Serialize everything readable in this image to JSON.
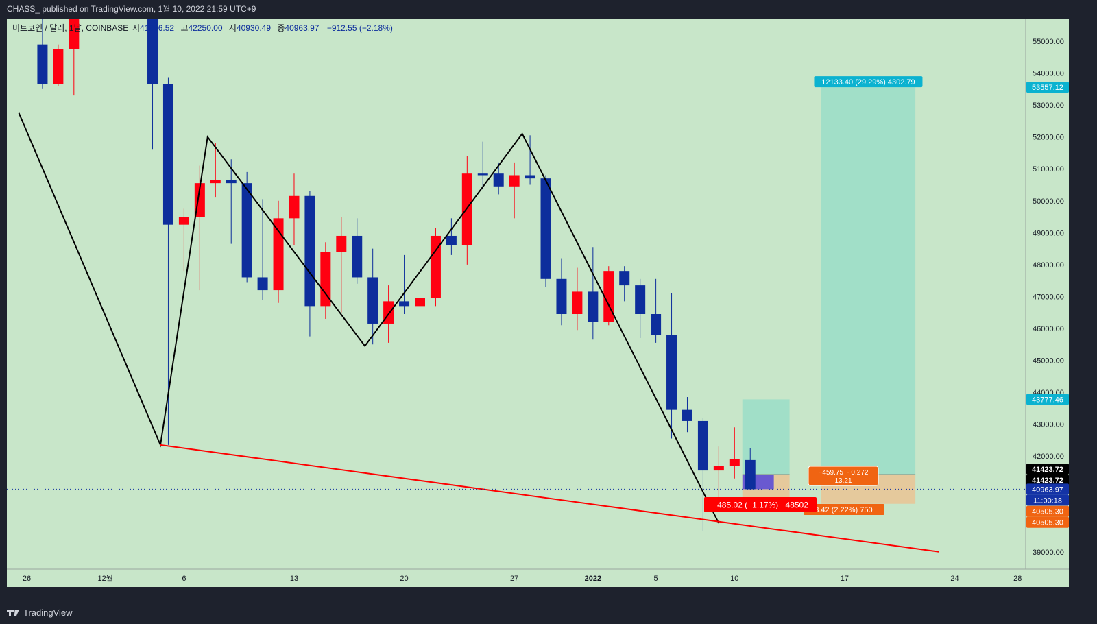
{
  "header": {
    "published": "CHASS_ published on TradingView.com, 1월 10, 2022 21:59 UTC+9"
  },
  "footer": {
    "brand": "TradingView",
    "logo_icon": "tradingview-logo-icon"
  },
  "colors": {
    "background": "#c8e6c9",
    "up_candle": "#ff0011",
    "down_candle": "#0d2e9c",
    "trendline": "#ff0000",
    "zigzag": "#000000",
    "target_zone": "#a1dfc8",
    "stop_zone": "#e5c99c",
    "entry_box": "#5b4dd6",
    "label_blue": "#0bb2d0",
    "label_orange": "#f06412",
    "label_red": "#ff0000",
    "label_navy": "#1433a6"
  },
  "legend": {
    "symbol": "비트코인 / 달러, 1날, COINBASE",
    "o_label": "시",
    "o_value": "41876.52",
    "h_label": "고",
    "h_value": "42250.00",
    "l_label": "저",
    "l_value": "40930.49",
    "c_label": "종",
    "c_value": "40963.97",
    "change": "−912.55 (−2.18%)"
  },
  "chart_data": {
    "type": "candlestick",
    "symbol": "비트코인 / 달러, 1날, COINBASE",
    "timeframe": "1날",
    "ylim": [
      38400,
      56200
    ],
    "y_ticks": [
      {
        "value": 55000,
        "label": "55000.00"
      },
      {
        "value": 54000,
        "label": "54000.00"
      },
      {
        "value": 53000,
        "label": "53000.00"
      },
      {
        "value": 52000,
        "label": "52000.00"
      },
      {
        "value": 51000,
        "label": "51000.00"
      },
      {
        "value": 50000,
        "label": "50000.00"
      },
      {
        "value": 49000,
        "label": "49000.00"
      },
      {
        "value": 48000,
        "label": "48000.00"
      },
      {
        "value": 47000,
        "label": "47000.00"
      },
      {
        "value": 46000,
        "label": "46000.00"
      },
      {
        "value": 45000,
        "label": "45000.00"
      },
      {
        "value": 44000,
        "label": "44000.00"
      },
      {
        "value": 43000,
        "label": "43000.00"
      },
      {
        "value": 42000,
        "label": "42000.00"
      },
      {
        "value": 39000,
        "label": "39000.00"
      }
    ],
    "x_ticks": [
      {
        "index": 0,
        "label": "26"
      },
      {
        "index": 5,
        "label": "12월"
      },
      {
        "index": 10,
        "label": "6"
      },
      {
        "index": 17,
        "label": "13"
      },
      {
        "index": 24,
        "label": "20"
      },
      {
        "index": 31,
        "label": "27"
      },
      {
        "index": 36,
        "label": "2022"
      },
      {
        "index": 40,
        "label": "5"
      },
      {
        "index": 45,
        "label": "10"
      },
      {
        "index": 52,
        "label": "17"
      },
      {
        "index": 59,
        "label": "24"
      },
      {
        "index": 63,
        "label": "28"
      }
    ],
    "candles": [
      {
        "i": 1,
        "o": 54900,
        "h": 55900,
        "l": 53500,
        "c": 53650
      },
      {
        "i": 2,
        "o": 53650,
        "h": 54900,
        "l": 53600,
        "c": 54750
      },
      {
        "i": 3,
        "o": 54750,
        "h": 56100,
        "l": 53300,
        "c": 56000
      },
      {
        "i": 8,
        "o": 56000,
        "h": 56000,
        "l": 51600,
        "c": 53650
      },
      {
        "i": 9,
        "o": 53650,
        "h": 53850,
        "l": 42350,
        "c": 49250
      },
      {
        "i": 10,
        "o": 49250,
        "h": 49750,
        "l": 47800,
        "c": 49500
      },
      {
        "i": 11,
        "o": 49500,
        "h": 51100,
        "l": 47200,
        "c": 50550
      },
      {
        "i": 12,
        "o": 50550,
        "h": 51800,
        "l": 50100,
        "c": 50650
      },
      {
        "i": 13,
        "o": 50650,
        "h": 51300,
        "l": 48650,
        "c": 50550
      },
      {
        "i": 14,
        "o": 50550,
        "h": 50900,
        "l": 47450,
        "c": 47600
      },
      {
        "i": 15,
        "o": 47600,
        "h": 50050,
        "l": 46900,
        "c": 47200
      },
      {
        "i": 16,
        "o": 47200,
        "h": 50000,
        "l": 46800,
        "c": 49450
      },
      {
        "i": 17,
        "o": 49450,
        "h": 50850,
        "l": 48600,
        "c": 50150
      },
      {
        "i": 18,
        "o": 50150,
        "h": 50300,
        "l": 45750,
        "c": 46700
      },
      {
        "i": 19,
        "o": 46700,
        "h": 48700,
        "l": 46300,
        "c": 48400
      },
      {
        "i": 20,
        "o": 48400,
        "h": 49500,
        "l": 46500,
        "c": 48900
      },
      {
        "i": 21,
        "o": 48900,
        "h": 49450,
        "l": 47400,
        "c": 47600
      },
      {
        "i": 22,
        "o": 47600,
        "h": 48500,
        "l": 45500,
        "c": 46150
      },
      {
        "i": 23,
        "o": 46150,
        "h": 47350,
        "l": 45550,
        "c": 46850
      },
      {
        "i": 24,
        "o": 46850,
        "h": 48300,
        "l": 46450,
        "c": 46700
      },
      {
        "i": 25,
        "o": 46700,
        "h": 47500,
        "l": 45600,
        "c": 46950
      },
      {
        "i": 26,
        "o": 46950,
        "h": 49150,
        "l": 46700,
        "c": 48900
      },
      {
        "i": 27,
        "o": 48900,
        "h": 49450,
        "l": 48300,
        "c": 48600
      },
      {
        "i": 28,
        "o": 48600,
        "h": 51400,
        "l": 48000,
        "c": 50850
      },
      {
        "i": 29,
        "o": 50850,
        "h": 51850,
        "l": 50350,
        "c": 50800
      },
      {
        "i": 30,
        "o": 50850,
        "h": 51200,
        "l": 50200,
        "c": 50450
      },
      {
        "i": 31,
        "o": 50450,
        "h": 51200,
        "l": 49450,
        "c": 50800
      },
      {
        "i": 32,
        "o": 50800,
        "h": 52050,
        "l": 50500,
        "c": 50700
      },
      {
        "i": 33,
        "o": 50700,
        "h": 50800,
        "l": 47300,
        "c": 47550
      },
      {
        "i": 34,
        "o": 47550,
        "h": 48200,
        "l": 46100,
        "c": 46450
      },
      {
        "i": 35,
        "o": 46450,
        "h": 47900,
        "l": 45950,
        "c": 47150
      },
      {
        "i": 36,
        "o": 47150,
        "h": 48550,
        "l": 45650,
        "c": 46200
      },
      {
        "i": 37,
        "o": 46200,
        "h": 47950,
        "l": 46100,
        "c": 47800
      },
      {
        "i": 38,
        "o": 47800,
        "h": 47950,
        "l": 46850,
        "c": 47350
      },
      {
        "i": 39,
        "o": 47350,
        "h": 47550,
        "l": 45700,
        "c": 46450
      },
      {
        "i": 40,
        "o": 46450,
        "h": 47550,
        "l": 45550,
        "c": 45800
      },
      {
        "i": 41,
        "o": 45800,
        "h": 47100,
        "l": 42550,
        "c": 43450
      },
      {
        "i": 42,
        "o": 43450,
        "h": 43850,
        "l": 42750,
        "c": 43100
      },
      {
        "i": 43,
        "o": 43100,
        "h": 43200,
        "l": 39650,
        "c": 41550
      },
      {
        "i": 44,
        "o": 41550,
        "h": 42300,
        "l": 40500,
        "c": 41700
      },
      {
        "i": 45,
        "o": 41700,
        "h": 42900,
        "l": 41300,
        "c": 41900
      },
      {
        "i": 46,
        "o": 41876.52,
        "h": 42250,
        "l": 40930.49,
        "c": 40963.97
      }
    ],
    "zigzag": [
      [
        -0.5,
        52750
      ],
      [
        8.5,
        42350
      ],
      [
        11.5,
        52000
      ],
      [
        21.5,
        45450
      ],
      [
        31.5,
        52100
      ],
      [
        44,
        39900
      ]
    ],
    "trendline": [
      [
        8.5,
        42350
      ],
      [
        58,
        39000
      ]
    ],
    "position_tool_left": {
      "x0": 45.5,
      "x1": 48.5,
      "target": 43777.46,
      "entry": 41423.72,
      "stop": 40505.3
    },
    "position_tool_right": {
      "x0": 50.5,
      "x1": 56.5,
      "target": 53557.12,
      "entry": 41423.72,
      "stop": 40505.3
    },
    "entry_box": {
      "x0": 45.5,
      "x1": 47.5,
      "top": 41423.72,
      "bottom": 40963.97
    },
    "current_price": 40963.97,
    "labels": {
      "target": "12133.40 (29.29%) 4302.79",
      "risk_ratio_1": "−459.75 ~ 0.272",
      "risk_ratio_2": "13.21",
      "stop_info": "918.42 (2.22%) 750",
      "loss_info": "−485.02 (−1.17%) −48502"
    },
    "price_axis_labels": {
      "target": "53557.12",
      "target_left": "43777.46",
      "entry_top": "41423.72",
      "entry_bottom": "41423.72",
      "last": "40963.97",
      "countdown": "11:00:18",
      "stop_top": "40505.30",
      "stop_bottom": "40505.30"
    }
  }
}
